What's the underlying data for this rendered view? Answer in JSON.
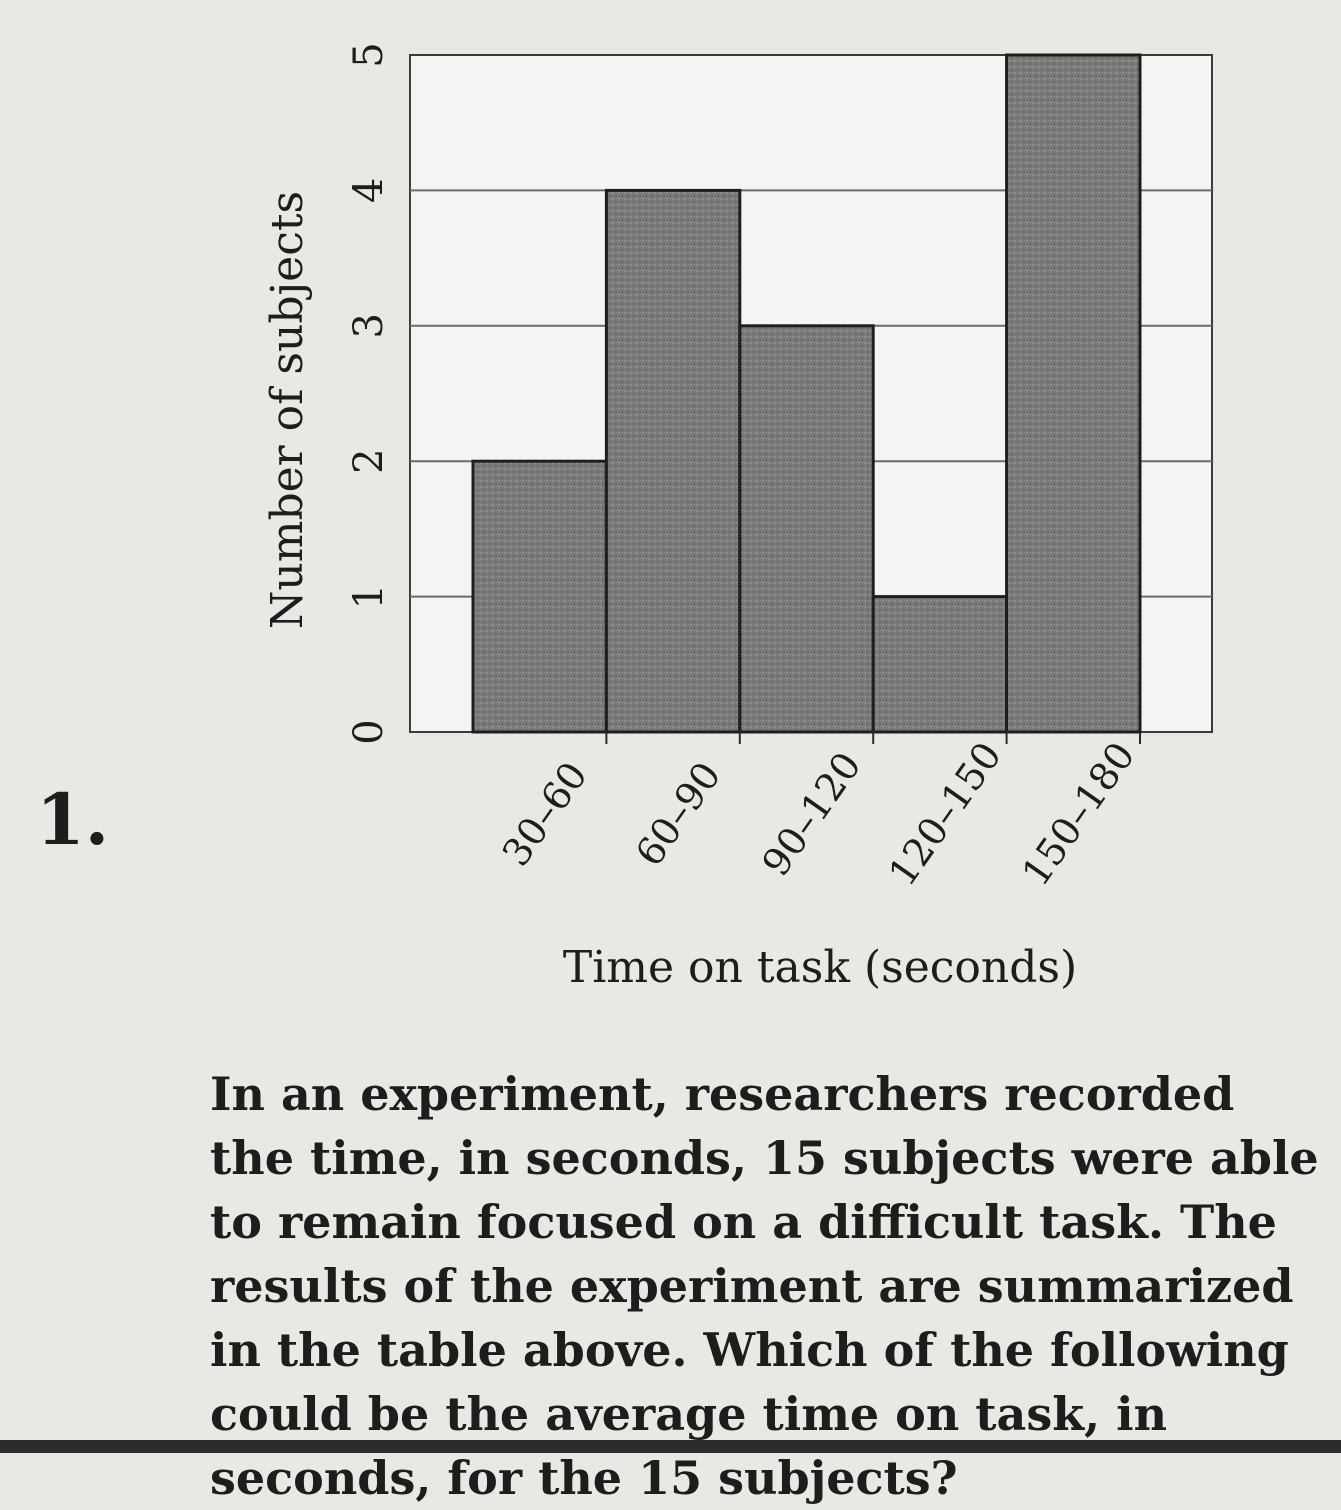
{
  "question": {
    "number": "1.",
    "text": "In an experiment, researchers recorded the time, in seconds, 15 subjects were able to remain focused on a difficult task. The results of the experiment are summarized in the table above. Which of the following could be the average time on task, in seconds, for the 15 subjects?"
  },
  "chart_data": {
    "type": "bar",
    "categories": [
      "30–60",
      "60–90",
      "90–120",
      "120–150",
      "150–180"
    ],
    "values": [
      2,
      4,
      3,
      1,
      5
    ],
    "xlabel": "Time on task (seconds)",
    "ylabel": "Number of subjects",
    "ylim": [
      0,
      5
    ],
    "yticks": [
      "0",
      "1",
      "2",
      "3",
      "4",
      "5"
    ],
    "grid": true,
    "bar_color": "#7a7a78",
    "plot_background": "#f4f4f2"
  }
}
